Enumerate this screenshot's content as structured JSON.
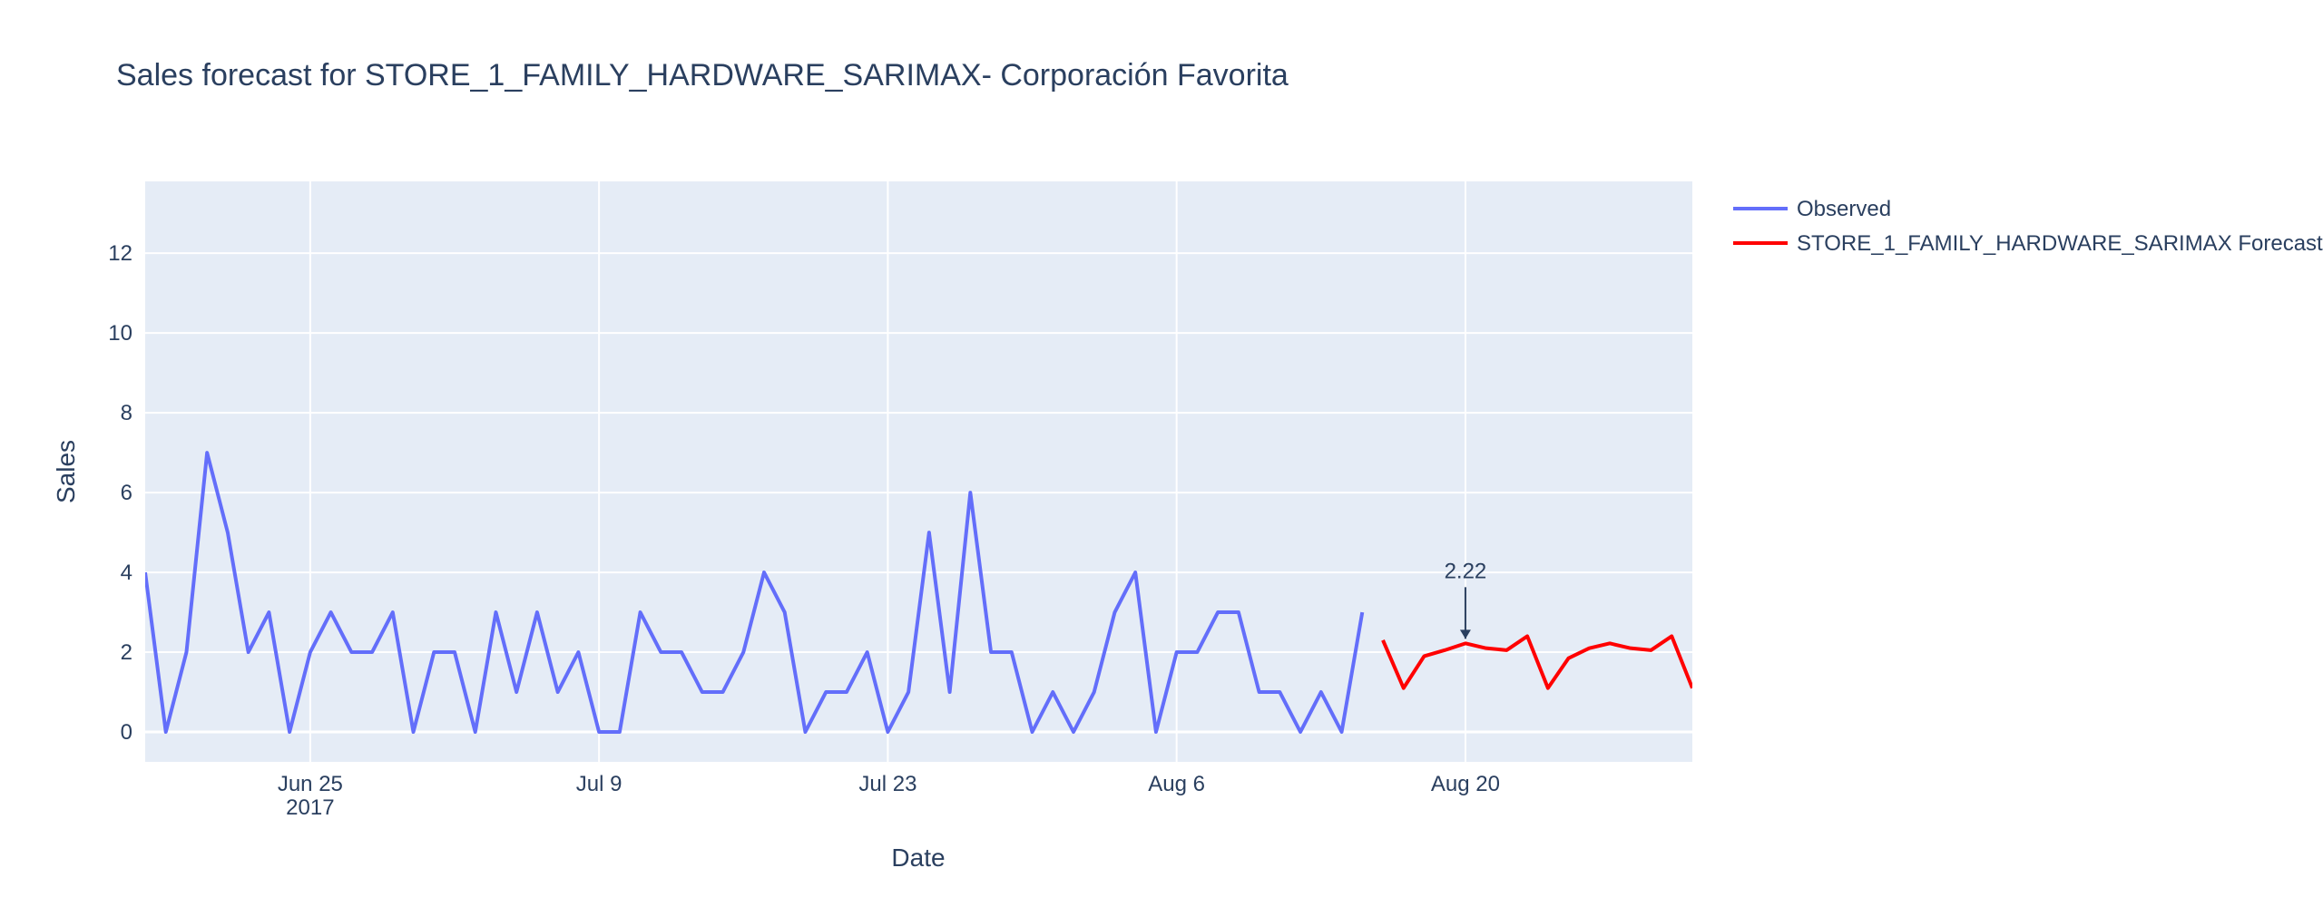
{
  "chart_data": {
    "type": "line",
    "title": "Sales forecast for STORE_1_FAMILY_HARDWARE_SARIMAX- Corporación Favorita",
    "xlabel": "Date",
    "ylabel": "Sales",
    "x_range": [
      "2017-06-17",
      "2017-08-31"
    ],
    "ylim": [
      -0.75,
      13.8
    ],
    "x_ticks": [
      {
        "date": "2017-06-25",
        "label": "Jun 25",
        "sublabel": "2017"
      },
      {
        "date": "2017-07-09",
        "label": "Jul 9",
        "sublabel": ""
      },
      {
        "date": "2017-07-23",
        "label": "Jul 23",
        "sublabel": ""
      },
      {
        "date": "2017-08-06",
        "label": "Aug 6",
        "sublabel": ""
      },
      {
        "date": "2017-08-20",
        "label": "Aug 20",
        "sublabel": ""
      }
    ],
    "y_ticks": [
      0,
      2,
      4,
      6,
      8,
      10,
      12
    ],
    "grid": true,
    "legend_position": "right",
    "series": [
      {
        "name": "Observed",
        "color": "#636efa",
        "start_date": "2017-06-17",
        "values": [
          4,
          0,
          2,
          7,
          5,
          2,
          3,
          0,
          2,
          3,
          2,
          2,
          3,
          0,
          2,
          2,
          0,
          3,
          1,
          3,
          1,
          2,
          0,
          0,
          3,
          2,
          2,
          1,
          1,
          2,
          4,
          3,
          0,
          1,
          1,
          2,
          0,
          1,
          5,
          1,
          6,
          2,
          2,
          0,
          1,
          0,
          1,
          3,
          4,
          0,
          2,
          2,
          3,
          3,
          1,
          1,
          0,
          1,
          0,
          3
        ]
      },
      {
        "name": "STORE_1_FAMILY_HARDWARE_SARIMAX Forecast",
        "color": "#ff0000",
        "start_date": "2017-08-16",
        "values": [
          2.3,
          1.1,
          1.9,
          2.05,
          2.22,
          2.1,
          2.05,
          2.4,
          1.1,
          1.85,
          2.1,
          2.22,
          2.1,
          2.05,
          2.4,
          1.1
        ]
      }
    ],
    "annotations": [
      {
        "text": "2.22",
        "x": "2017-08-20",
        "y": 2.22,
        "arrow": true
      }
    ]
  }
}
